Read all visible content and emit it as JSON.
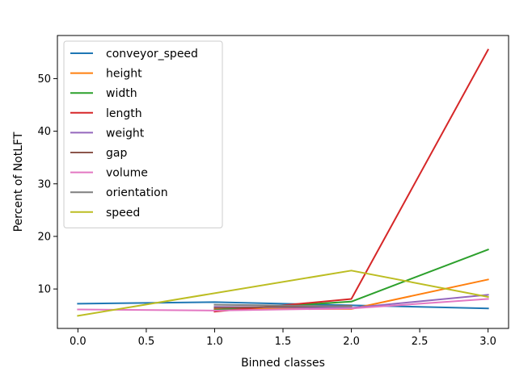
{
  "chart_data": {
    "type": "line",
    "title": "",
    "xlabel": "Binned classes",
    "ylabel": "Percent of NotLFT",
    "xlim": [
      -0.15,
      3.15
    ],
    "ylim": [
      2.5,
      58.2
    ],
    "xticks": [
      0.0,
      0.5,
      1.0,
      1.5,
      2.0,
      2.5,
      3.0
    ],
    "xtick_labels": [
      "0.0",
      "0.5",
      "1.0",
      "1.5",
      "2.0",
      "2.5",
      "3.0"
    ],
    "yticks": [
      10,
      20,
      30,
      40,
      50
    ],
    "ytick_labels": [
      "10",
      "20",
      "30",
      "40",
      "50"
    ],
    "grid": false,
    "legend_position": "top-left",
    "series": [
      {
        "name": "conveyor_speed",
        "color": "#1f77b4",
        "x": [
          0,
          1,
          2,
          3
        ],
        "y": [
          7.2,
          7.5,
          6.9,
          6.3
        ]
      },
      {
        "name": "height",
        "color": "#ff7f0e",
        "x": [
          1,
          2,
          3
        ],
        "y": [
          6.2,
          6.2,
          11.8
        ]
      },
      {
        "name": "width",
        "color": "#2ca02c",
        "x": [
          1,
          2,
          3
        ],
        "y": [
          6.0,
          7.6,
          17.5
        ]
      },
      {
        "name": "length",
        "color": "#d62728",
        "x": [
          1,
          2,
          3
        ],
        "y": [
          5.7,
          8.1,
          55.5
        ]
      },
      {
        "name": "weight",
        "color": "#9467bd",
        "x": [
          1,
          2,
          3
        ],
        "y": [
          6.6,
          6.4,
          8.9
        ]
      },
      {
        "name": "gap",
        "color": "#8c564b",
        "x": [
          1,
          2
        ],
        "y": [
          6.4,
          6.8
        ]
      },
      {
        "name": "volume",
        "color": "#e377c2",
        "x": [
          0,
          1,
          2,
          3
        ],
        "y": [
          6.1,
          5.9,
          6.3,
          8.1
        ]
      },
      {
        "name": "orientation",
        "color": "#7f7f7f",
        "x": [
          1,
          2
        ],
        "y": [
          7.0,
          6.7
        ]
      },
      {
        "name": "speed",
        "color": "#bcbd22",
        "x": [
          0,
          2,
          3
        ],
        "y": [
          4.9,
          13.5,
          8.5
        ]
      }
    ]
  }
}
